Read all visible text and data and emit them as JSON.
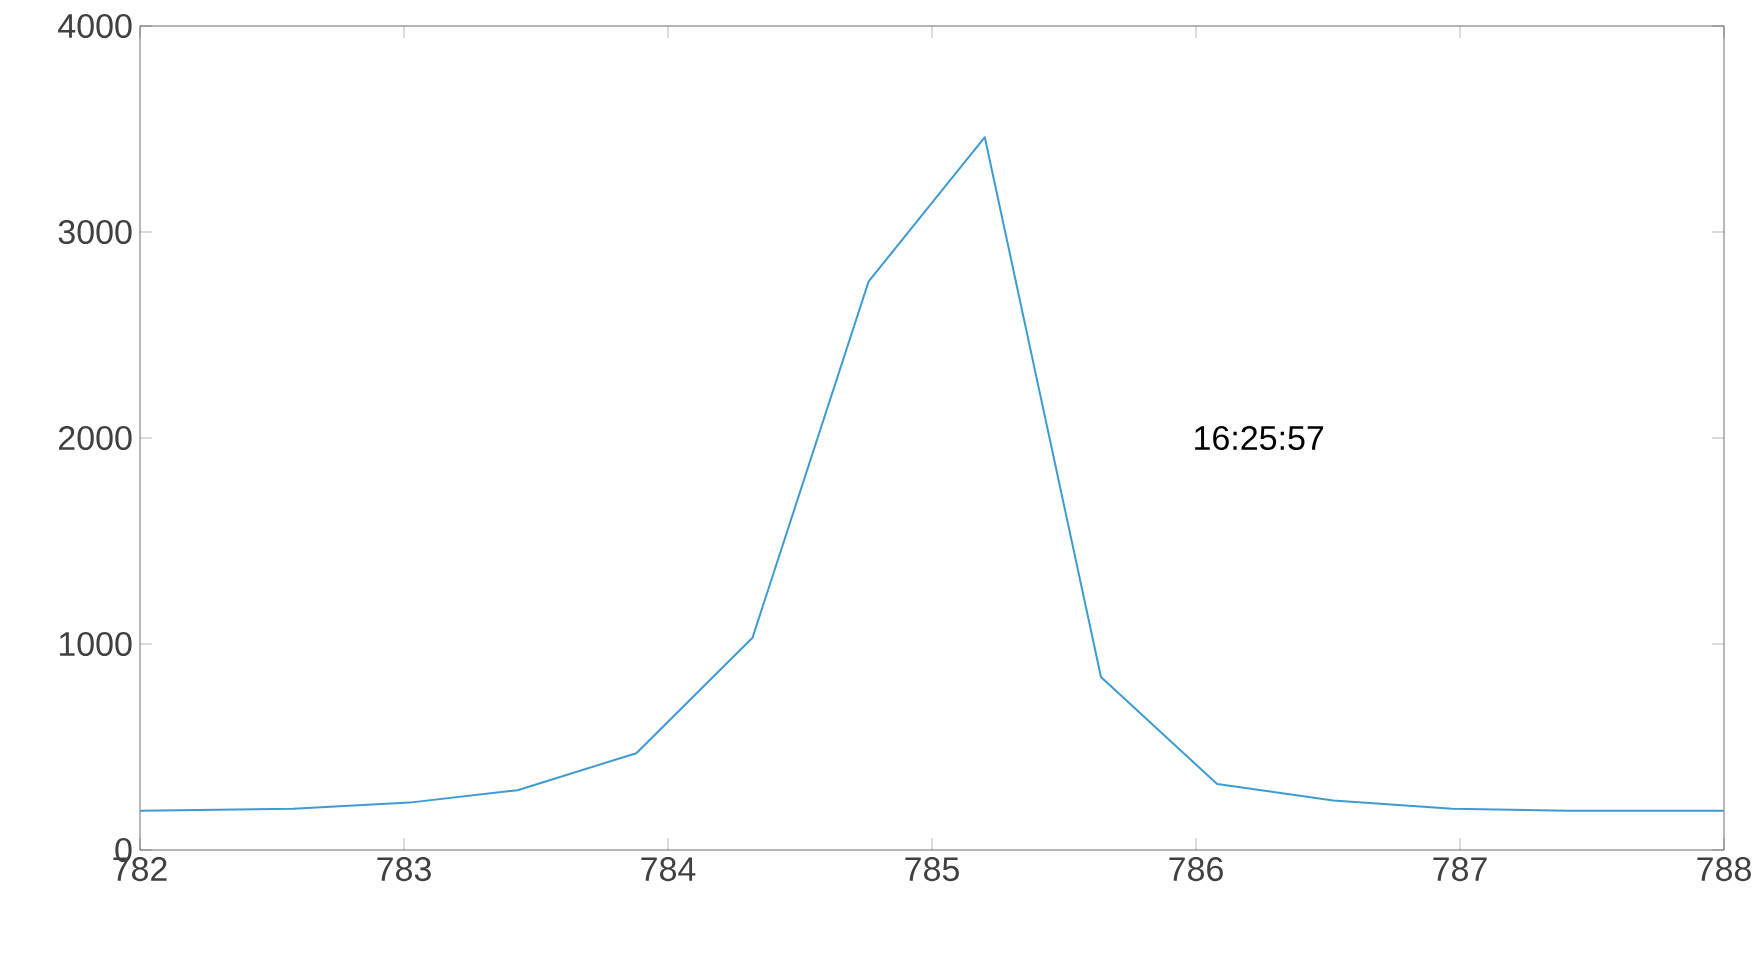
{
  "chart_data": {
    "type": "line",
    "x": [
      782.0,
      782.58,
      783.02,
      783.43,
      783.88,
      784.32,
      784.76,
      785.2,
      785.64,
      786.08,
      786.52,
      786.97,
      787.41,
      788.0
    ],
    "series": [
      {
        "color": "#3d9bd3",
        "values": [
          190,
          200,
          230,
          290,
          470,
          1030,
          2760,
          3460,
          840,
          320,
          240,
          200,
          190,
          190
        ]
      }
    ],
    "xlim": [
      782,
      788
    ],
    "xticks": [
      782,
      783,
      784,
      785,
      786,
      787,
      788
    ],
    "ylim": [
      0,
      4000
    ],
    "yticks": [
      0,
      1000,
      2000,
      3000,
      4000
    ],
    "annotations": [
      "16:25:57"
    ]
  }
}
